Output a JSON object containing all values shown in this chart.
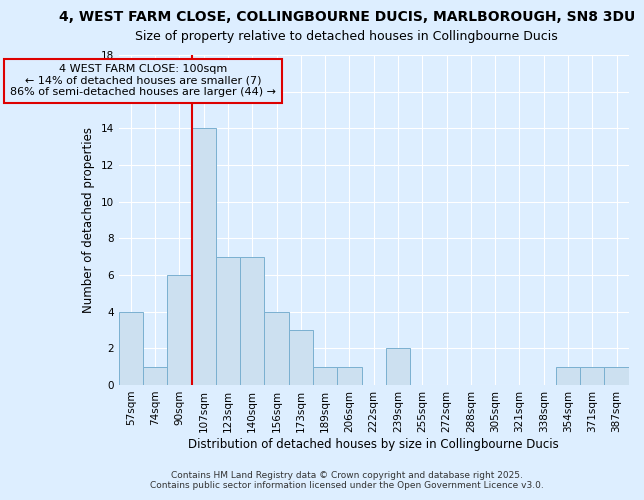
{
  "title_line1": "4, WEST FARM CLOSE, COLLINGBOURNE DUCIS, MARLBOROUGH, SN8 3DU",
  "title_line2": "Size of property relative to detached houses in Collingbourne Ducis",
  "xlabel": "Distribution of detached houses by size in Collingbourne Ducis",
  "ylabel": "Number of detached properties",
  "bin_labels": [
    "57sqm",
    "74sqm",
    "90sqm",
    "107sqm",
    "123sqm",
    "140sqm",
    "156sqm",
    "173sqm",
    "189sqm",
    "206sqm",
    "222sqm",
    "239sqm",
    "255sqm",
    "272sqm",
    "288sqm",
    "305sqm",
    "321sqm",
    "338sqm",
    "354sqm",
    "371sqm",
    "387sqm"
  ],
  "values": [
    4,
    1,
    6,
    14,
    7,
    7,
    4,
    3,
    1,
    1,
    0,
    2,
    0,
    0,
    0,
    0,
    0,
    0,
    1,
    1,
    1
  ],
  "bar_color": "#cce0f0",
  "bar_edge_color": "#7ab0d0",
  "background_color": "#ddeeff",
  "grid_color": "#ffffff",
  "vline_x": 3.0,
  "vline_color": "#dd0000",
  "annotation_text": "4 WEST FARM CLOSE: 100sqm\n← 14% of detached houses are smaller (7)\n86% of semi-detached houses are larger (44) →",
  "annotation_box_color": "#dd0000",
  "ylim": [
    0,
    18
  ],
  "yticks": [
    0,
    2,
    4,
    6,
    8,
    10,
    12,
    14,
    16,
    18
  ],
  "footnote": "Contains HM Land Registry data © Crown copyright and database right 2025.\nContains public sector information licensed under the Open Government Licence v3.0.",
  "title_fontsize": 10,
  "subtitle_fontsize": 9,
  "label_fontsize": 8.5,
  "tick_fontsize": 7.5,
  "footnote_fontsize": 6.5,
  "ann_fontsize": 8
}
